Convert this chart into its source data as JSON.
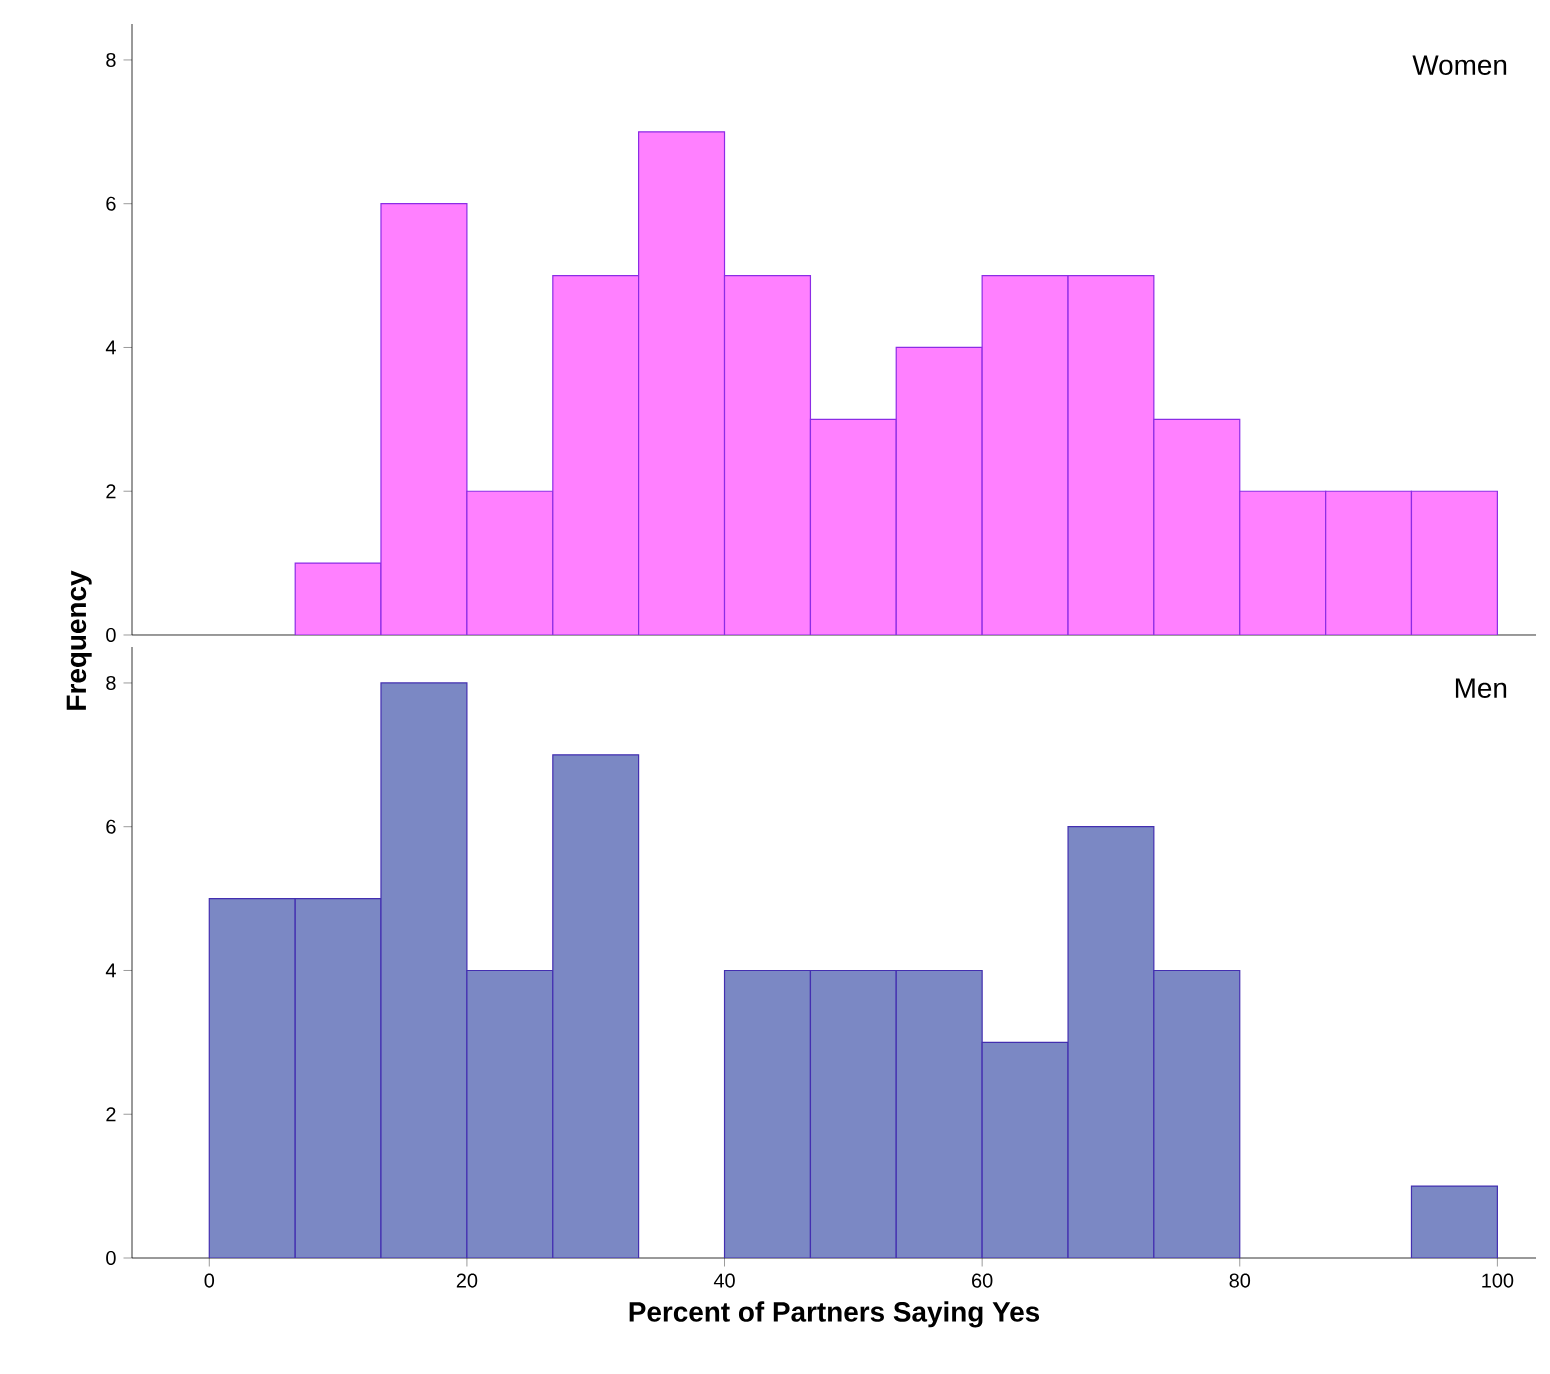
{
  "chart_data": [
    {
      "type": "histogram",
      "title": "Women",
      "bins": [
        0,
        6.67,
        13.33,
        20,
        26.67,
        33.33,
        40,
        46.67,
        53.33,
        60,
        66.67,
        73.33,
        80,
        86.67,
        93.33,
        100
      ],
      "values": [
        0,
        1,
        6,
        2,
        5,
        7,
        5,
        3,
        4,
        5,
        5,
        3,
        2,
        2,
        2
      ],
      "color": "#ff80ff",
      "xlim": [
        -6,
        103
      ],
      "ylim": [
        0,
        8.5
      ],
      "xticks": [
        0,
        20,
        40,
        60,
        80,
        100
      ],
      "yticks": [
        0,
        2,
        4,
        6,
        8
      ],
      "tick_labels": "y",
      "grid": false
    },
    {
      "type": "histogram",
      "title": "Men",
      "xlabel": "Percent of Partners Saying Yes",
      "ylabel": "Frequency",
      "bins": [
        0,
        6.67,
        13.33,
        20,
        26.67,
        33.33,
        40,
        46.67,
        53.33,
        60,
        66.67,
        73.33,
        80,
        86.67,
        93.33,
        100
      ],
      "values": [
        5,
        5,
        8,
        4,
        7,
        0,
        4,
        4,
        4,
        3,
        6,
        4,
        0,
        0,
        1
      ],
      "color": "#7b88c4",
      "xlim": [
        -6,
        103
      ],
      "ylim": [
        0,
        8.5
      ],
      "xticks": [
        0,
        20,
        40,
        60,
        80,
        100
      ],
      "yticks": [
        0,
        2,
        4,
        6,
        8
      ],
      "grid": false
    }
  ]
}
